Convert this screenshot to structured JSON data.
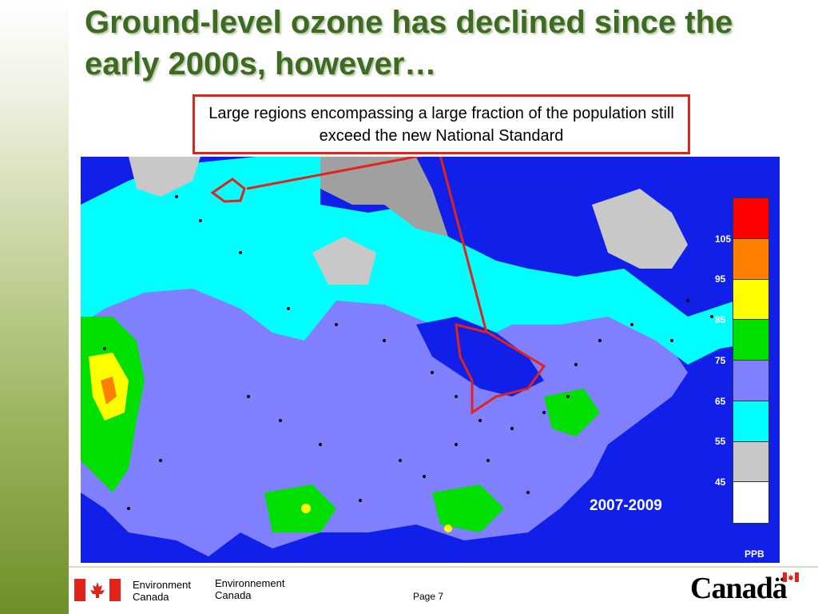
{
  "slide": {
    "title": "Ground-level ozone has declined since the early 2000s, however…",
    "callout": "Large regions encompassing a large fraction of the population still exceed the new National Standard",
    "page_label": "Page 7"
  },
  "map": {
    "period_label": "2007-2009",
    "units_label": "PPB",
    "legend": {
      "colors": [
        "#ff0000",
        "#ff8000",
        "#ffff00",
        "#00e000",
        "#8080ff",
        "#00ffff",
        "#c8c8c8",
        "#ffffff"
      ],
      "tick_labels": [
        "105",
        "95",
        "85",
        "75",
        "65",
        "55",
        "45"
      ]
    },
    "zone_colors": {
      "water": "#1020e8",
      "gray": "#a0a0a0",
      "light_gray": "#c8c8c8",
      "cyan": "#00ffff",
      "purple": "#8080ff",
      "green": "#00e000",
      "yellow": "#ffff00",
      "orange": "#ff8000",
      "highlight": "#e2231a"
    }
  },
  "footer": {
    "department_en_line1": "Environment",
    "department_en_line2": "Canada",
    "department_fr_line1": "Environnement",
    "department_fr_line2": "Canada",
    "wordmark": "Canadä"
  }
}
